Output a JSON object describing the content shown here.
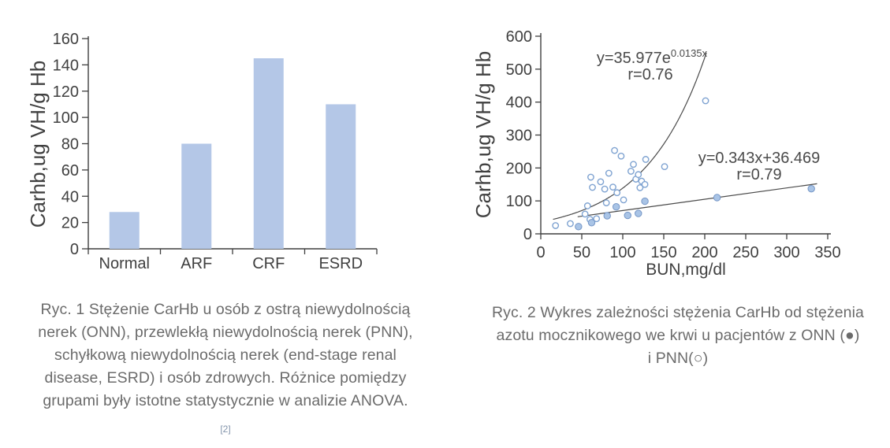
{
  "page": {
    "background": "#ffffff"
  },
  "colors": {
    "axis": "#3f3f3f",
    "tick_label": "#404040",
    "axis_title": "#404040",
    "fit_line": "#4a4a4a",
    "equation_text": "#4a4a4a",
    "bar_fill": "#b4c7e7",
    "open_point_stroke": "#7fa3d1",
    "filled_point_fill": "#a9c4e6",
    "filled_point_stroke": "#7596c6",
    "caption_text": "#6b6b6b",
    "footnote_text": "#8394ab"
  },
  "chart_data": [
    {
      "type": "bar",
      "title": "",
      "categories": [
        "Normal",
        "ARF",
        "CRF",
        "ESRD"
      ],
      "values": [
        28,
        80,
        145,
        110
      ],
      "xlabel": "",
      "ylabel": "Carhb,ug VH/g Hb",
      "ylim": [
        0,
        160
      ],
      "yticks": [
        0,
        20,
        40,
        60,
        80,
        100,
        120,
        140,
        160
      ],
      "grid": false,
      "legend": "none"
    },
    {
      "type": "scatter",
      "title": "",
      "xlabel": "BUN,mg/dl",
      "ylabel": "Carhb,ug VH/g Hb",
      "xlim": [
        0,
        350
      ],
      "ylim": [
        0,
        600
      ],
      "xticks": [
        0,
        50,
        100,
        150,
        200,
        250,
        300,
        350
      ],
      "yticks": [
        0,
        100,
        200,
        300,
        400,
        500,
        600
      ],
      "grid": false,
      "legend": "in-caption",
      "series": [
        {
          "name": "PNN",
          "marker": "open-circle",
          "points": [
            [
              18,
              25
            ],
            [
              36,
              31
            ],
            [
              54,
              60
            ],
            [
              57,
              85
            ],
            [
              60,
              44
            ],
            [
              61,
              172
            ],
            [
              63,
              141
            ],
            [
              68,
              46
            ],
            [
              73,
              158
            ],
            [
              78,
              136
            ],
            [
              80,
              94
            ],
            [
              83,
              184
            ],
            [
              88,
              142
            ],
            [
              90,
              253
            ],
            [
              93,
              125
            ],
            [
              98,
              236
            ],
            [
              101,
              103
            ],
            [
              110,
              190
            ],
            [
              113,
              211
            ],
            [
              116,
              166
            ],
            [
              119,
              180
            ],
            [
              121,
              140
            ],
            [
              123,
              160
            ],
            [
              127,
              150
            ],
            [
              128,
              226
            ],
            [
              151,
              204
            ],
            [
              201,
              404
            ]
          ]
        },
        {
          "name": "ONN",
          "marker": "filled-circle",
          "points": [
            [
              46,
              22
            ],
            [
              62,
              34
            ],
            [
              81,
              55
            ],
            [
              92,
              82
            ],
            [
              106,
              56
            ],
            [
              119,
              62
            ],
            [
              127,
              99
            ],
            [
              215,
              110
            ],
            [
              330,
              137
            ]
          ]
        }
      ],
      "fits": [
        {
          "kind": "exponential",
          "a": 35.977,
          "b": 0.0135,
          "x_start": 15,
          "x_end": 202,
          "label_base": "y=35.977e",
          "label_sup": "0.0135x",
          "label_r": "r=0.76"
        },
        {
          "kind": "linear",
          "slope": 0.343,
          "intercept": 36.469,
          "x_start": 45,
          "x_end": 337,
          "label_base": "y=0.343x+36.469",
          "label_sup": "",
          "label_r": "r=0.79"
        }
      ]
    }
  ],
  "figures": [
    {
      "caption_lines": [
        "Ryc. 1 Stężenie CarHb u osób z ostrą niewydolnością",
        "nerek (ONN), przewlekłą niewydolnością nerek (PNN),",
        "schyłkową niewydolnością nerek (end-stage renal",
        "disease, ESRD) i osób zdrowych. Różnice pomiędzy",
        "grupami były istotne statystycznie w analizie ANOVA."
      ],
      "footnote": "[2]"
    },
    {
      "caption_lines": [
        "Ryc. 2 Wykres zależności stężenia CarHb od stężenia",
        "azotu mocznikowego we krwi u pacjentów z ONN (●)",
        "i PNN(○)"
      ]
    }
  ]
}
